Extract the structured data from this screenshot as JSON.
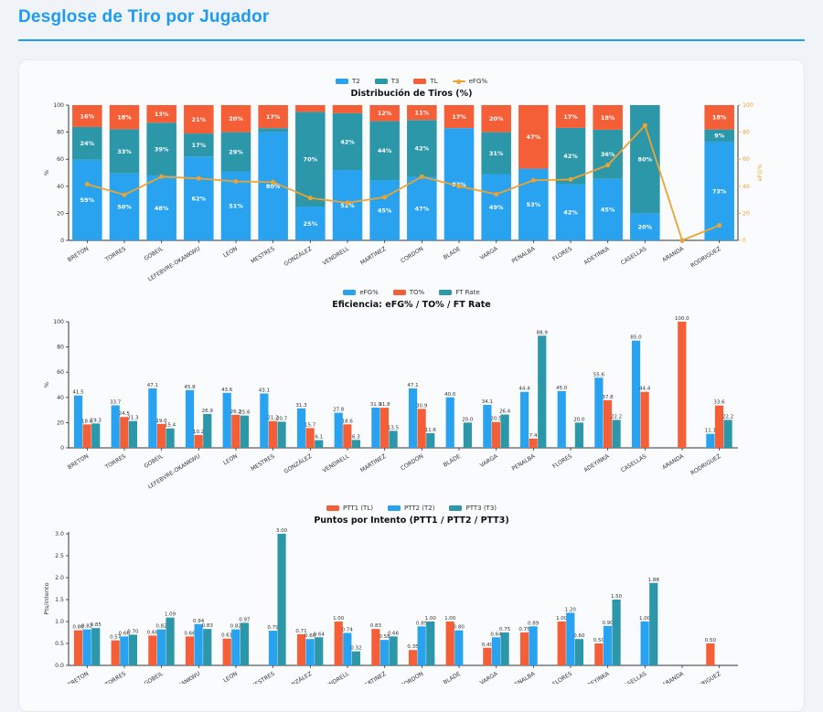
{
  "page": {
    "title": "Desglose de Tiro por Jugador"
  },
  "theme": {
    "header_accent": "#1d9bf0",
    "page_bg": "#f0f3f7",
    "card_bg": "#fafbfd",
    "card_border": "#e4e9f0",
    "axis_color": "#333333",
    "t2_blue": "#29a3ef",
    "t3_teal": "#2b97a9",
    "tl_orange": "#f45f38",
    "line_orange": "#efa32f"
  },
  "players": [
    "BRETON",
    "TORRES",
    "GOBEIL",
    "LEFEBVRE-OKANKWU",
    "LEON",
    "MESTRES",
    "GONZÁLEZ",
    "VENDRELL",
    "MARTINEZ",
    "CORDON",
    "BLADE",
    "VARGA",
    "PENALBA",
    "FLORES",
    "ADEYINKA",
    "CASELLAS",
    "ARANDA",
    "RODRIGUEZ"
  ],
  "chart_data": [
    {
      "type": "bar",
      "variant": "stacked+line",
      "title": "Distribución de Tiros (%)",
      "ylabel": "%",
      "y2label": "eFG%",
      "ylim": [
        0,
        100
      ],
      "yticks": [
        0,
        20,
        40,
        60,
        80,
        100
      ],
      "grid": false,
      "legend_position": "top-center",
      "legend": [
        {
          "label": "T2",
          "color": "#29a3ef",
          "marker": "rect"
        },
        {
          "label": "T3",
          "color": "#2b97a9",
          "marker": "rect"
        },
        {
          "label": "TL",
          "color": "#f45f38",
          "marker": "rect"
        },
        {
          "label": "eFG%",
          "color": "#efa32f",
          "marker": "line"
        }
      ],
      "categories": [
        "BRETON",
        "TORRES",
        "GOBEIL",
        "LEFEBVRE-OKANKWU",
        "LEON",
        "MESTRES",
        "GONZÁLEZ",
        "VENDRELL",
        "MARTINEZ",
        "CORDON",
        "BLADE",
        "VARGA",
        "PENALBA",
        "FLORES",
        "ADEYINKA",
        "CASELLAS",
        "ARANDA",
        "RODRIGUEZ"
      ],
      "series": [
        {
          "name": "T2",
          "color": "#29a3ef",
          "values": [
            59,
            50,
            48,
            62,
            51,
            80,
            25,
            52,
            45,
            47,
            83,
            49,
            53,
            42,
            45,
            20,
            0,
            73
          ]
        },
        {
          "name": "T3",
          "color": "#2b97a9",
          "values": [
            24,
            33,
            39,
            17,
            29,
            3,
            70,
            42,
            44,
            42,
            0,
            31,
            0,
            42,
            36,
            80,
            0,
            9
          ]
        },
        {
          "name": "TL",
          "color": "#f45f38",
          "values": [
            16,
            18,
            13,
            21,
            20,
            17,
            5,
            6,
            12,
            11,
            17,
            20,
            47,
            17,
            18,
            0,
            0,
            18
          ]
        },
        {
          "name": "eFG%",
          "type": "line",
          "axis": "right",
          "color": "#efa32f",
          "values": [
            41.5,
            33.7,
            47.1,
            45.8,
            43.6,
            43.1,
            31.3,
            27.8,
            31.9,
            47.1,
            40.0,
            34.1,
            44.4,
            45.0,
            55.6,
            85.0,
            0.0,
            11.1
          ]
        }
      ]
    },
    {
      "type": "bar",
      "variant": "grouped",
      "title": "Eficiencia: eFG% / TO% / FT Rate",
      "ylabel": "%",
      "ylim": [
        0,
        100
      ],
      "yticks": [
        0,
        20,
        40,
        60,
        80,
        100
      ],
      "grid": false,
      "label_decimals": 1,
      "legend_position": "top-center",
      "legend": [
        {
          "label": "eFG%",
          "color": "#29a3ef",
          "marker": "rect"
        },
        {
          "label": "TO%",
          "color": "#f45f38",
          "marker": "rect"
        },
        {
          "label": "FT Rate",
          "color": "#2b97a9",
          "marker": "rect"
        }
      ],
      "categories": [
        "BRETON",
        "TORRES",
        "GOBEIL",
        "LEFEBVRE-OKANKWU",
        "LEON",
        "MESTRES",
        "GONZÁLEZ",
        "VENDRELL",
        "MARTINEZ",
        "CORDON",
        "BLADE",
        "VARGA",
        "PENALBA",
        "FLORES",
        "ADEYINKA",
        "CASELLAS",
        "ARANDA",
        "RODRIGUEZ"
      ],
      "series": [
        {
          "name": "eFG%",
          "color": "#29a3ef",
          "values": [
            41.5,
            33.7,
            47.1,
            45.8,
            43.6,
            43.1,
            31.3,
            27.8,
            31.9,
            47.1,
            40.0,
            34.1,
            44.4,
            45.0,
            55.6,
            85.0,
            null,
            11.1
          ]
        },
        {
          "name": "TO%",
          "color": "#f45f38",
          "values": [
            18.6,
            24.5,
            19.0,
            10.2,
            26.2,
            21.2,
            15.7,
            18.6,
            31.8,
            30.9,
            null,
            20.5,
            7.4,
            null,
            37.8,
            44.4,
            100.0,
            33.6
          ]
        },
        {
          "name": "FT Rate",
          "color": "#2b97a9",
          "values": [
            19.3,
            21.3,
            15.4,
            26.9,
            25.6,
            20.7,
            6.1,
            6.3,
            13.5,
            11.6,
            20.0,
            26.4,
            88.9,
            20.0,
            22.2,
            null,
            null,
            22.2
          ]
        }
      ]
    },
    {
      "type": "bar",
      "variant": "grouped",
      "title": "Puntos por Intento (PTT1 / PTT2 / PTT3)",
      "ylabel": "Pts/intento",
      "ylim": [
        0,
        3.16
      ],
      "yticks": [
        0,
        0.5,
        1,
        1.5,
        2,
        2.5,
        3
      ],
      "grid": false,
      "label_decimals": 2,
      "legend_position": "top-center",
      "legend": [
        {
          "label": "PTT1 (TL)",
          "color": "#f45f38",
          "marker": "rect"
        },
        {
          "label": "PTT2 (T2)",
          "color": "#29a3ef",
          "marker": "rect"
        },
        {
          "label": "PTT3 (T3)",
          "color": "#2b97a9",
          "marker": "rect"
        }
      ],
      "categories": [
        "BRETON",
        "TORRES",
        "GOBEIL",
        "LEFEBVRE-OKANKWU",
        "LEON",
        "MESTRES",
        "GONZÁLEZ",
        "VENDRELL",
        "MARTINEZ",
        "CORDON",
        "BLADE",
        "VARGA",
        "PENALBA",
        "FLORES",
        "ADEYINKA",
        "CASELLAS",
        "ARANDA",
        "RODRIGUEZ"
      ],
      "series": [
        {
          "name": "PTT1 (TL)",
          "color": "#f45f38",
          "values": [
            0.8,
            0.57,
            0.68,
            0.66,
            0.61,
            null,
            0.71,
            1.0,
            0.83,
            0.35,
            1.0,
            0.4,
            0.75,
            1.0,
            0.5,
            null,
            null,
            0.5
          ]
        },
        {
          "name": "PTT2 (T2)",
          "color": "#29a3ef",
          "values": [
            0.82,
            0.66,
            0.82,
            0.94,
            0.82,
            0.79,
            0.6,
            0.74,
            0.58,
            0.89,
            0.8,
            0.64,
            0.89,
            1.2,
            0.9,
            1.0,
            null,
            null
          ]
        },
        {
          "name": "PTT3 (T3)",
          "color": "#2b97a9",
          "values": [
            0.85,
            0.7,
            1.09,
            0.83,
            0.97,
            3.0,
            0.64,
            0.32,
            0.66,
            1.0,
            null,
            0.75,
            null,
            0.6,
            1.5,
            1.88,
            null,
            null
          ]
        }
      ]
    }
  ]
}
